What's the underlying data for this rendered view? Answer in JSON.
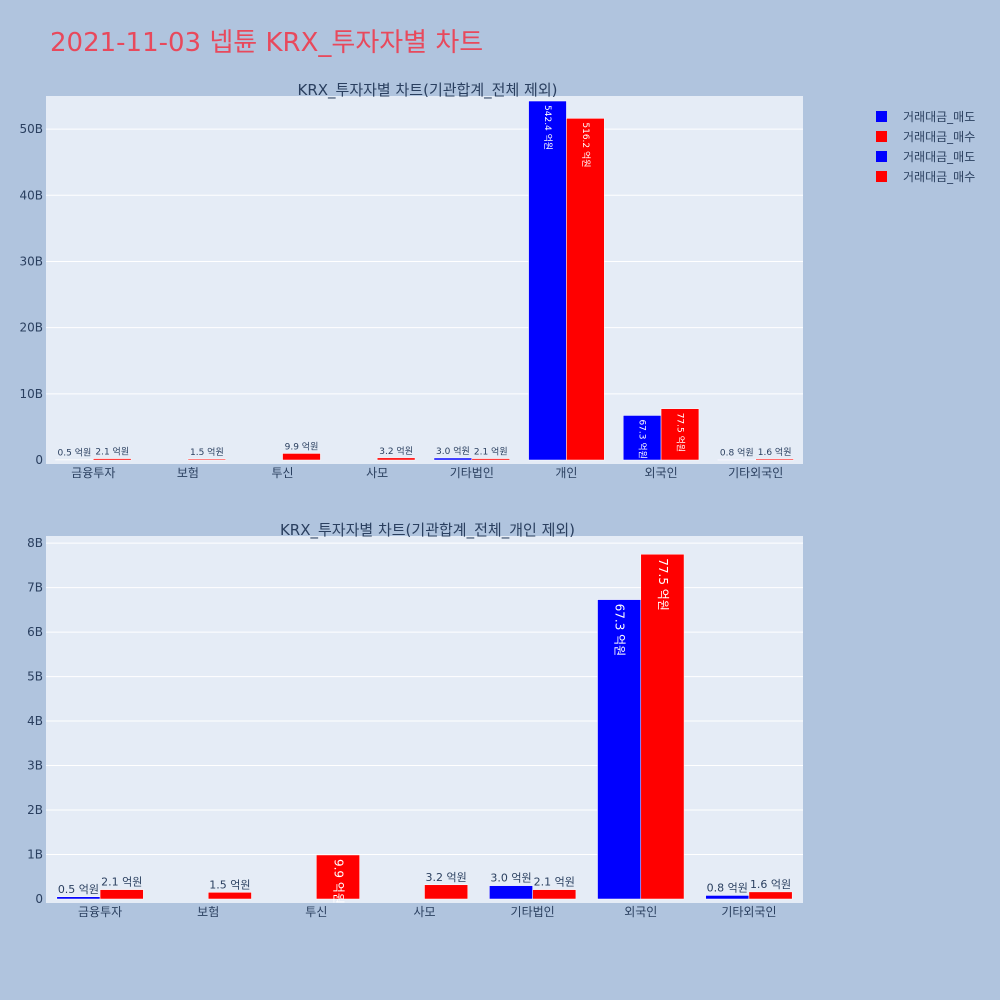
{
  "page_title": "2021-11-03 넵튠 KRX_투자자별 차트",
  "legend": [
    {
      "label": "거래대금_매도",
      "color": "#0000ff"
    },
    {
      "label": "거래대금_매수",
      "color": "#ff0000"
    },
    {
      "label": "거래대금_매도",
      "color": "#0000ff"
    },
    {
      "label": "거래대금_매수",
      "color": "#ff0000"
    }
  ],
  "chart_data": [
    {
      "type": "bar",
      "title": "KRX_투자자별 차트(기관합계_전체 제외)",
      "categories": [
        "금융투자",
        "보험",
        "투신",
        "사모",
        "기타법인",
        "개인",
        "외국인",
        "기타외국인"
      ],
      "series": [
        {
          "name": "거래대금_매도",
          "color": "#0000ff",
          "values": [
            50000000,
            0,
            0,
            0,
            300000000,
            54240000000,
            6730000000,
            80000000
          ],
          "labels": [
            "0.5 억원",
            "",
            "",
            "",
            "3.0 억원",
            "542.4 억원",
            "67.3 억원",
            "0.8 억원"
          ]
        },
        {
          "name": "거래대금_매수",
          "color": "#ff0000",
          "values": [
            210000000,
            150000000,
            990000000,
            320000000,
            210000000,
            51620000000,
            7750000000,
            160000000
          ],
          "labels": [
            "2.1 억원",
            "1.5 억원",
            "9.9 억원",
            "3.2 억원",
            "2.1 억원",
            "516.2 억원",
            "77.5 억원",
            "1.6 억원"
          ]
        }
      ],
      "y_ticks": [
        0,
        10000000000,
        20000000000,
        30000000000,
        40000000000,
        50000000000
      ],
      "y_tick_labels": [
        "0",
        "10B",
        "20B",
        "30B",
        "40B",
        "50B"
      ],
      "ylim": [
        0,
        55000000000
      ],
      "grid": true
    },
    {
      "type": "bar",
      "title": "KRX_투자자별 차트(기관합계_전체_개인 제외)",
      "categories": [
        "금융투자",
        "보험",
        "투신",
        "사모",
        "기타법인",
        "외국인",
        "기타외국인"
      ],
      "series": [
        {
          "name": "거래대금_매도",
          "color": "#0000ff",
          "values": [
            50000000,
            0,
            0,
            0,
            300000000,
            6730000000,
            80000000
          ],
          "labels": [
            "0.5 억원",
            "",
            "",
            "",
            "3.0 억원",
            "67.3 억원",
            "0.8 억원"
          ]
        },
        {
          "name": "거래대금_매수",
          "color": "#ff0000",
          "values": [
            210000000,
            150000000,
            990000000,
            320000000,
            210000000,
            7750000000,
            160000000
          ],
          "labels": [
            "2.1 억원",
            "1.5 억원",
            "9.9 억원",
            "3.2 억원",
            "2.1 억원",
            "77.5 억원",
            "1.6 억원"
          ]
        }
      ],
      "y_ticks": [
        0,
        1000000000,
        2000000000,
        3000000000,
        4000000000,
        5000000000,
        6000000000,
        7000000000,
        8000000000
      ],
      "y_tick_labels": [
        "0",
        "1B",
        "2B",
        "3B",
        "4B",
        "5B",
        "6B",
        "7B",
        "8B"
      ],
      "ylim": [
        0,
        8160000000
      ],
      "grid": true
    }
  ]
}
